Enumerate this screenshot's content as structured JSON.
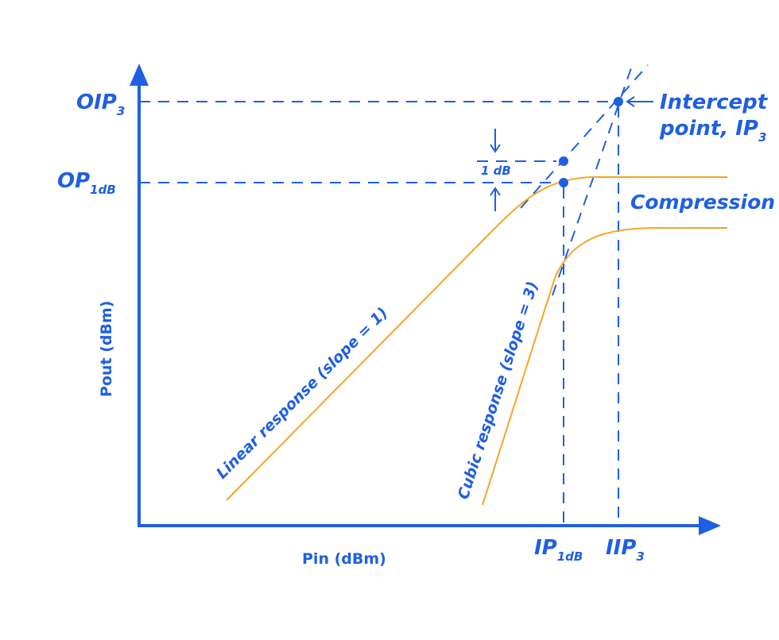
{
  "diagram": {
    "y_axis_label": "Pout (dBm)",
    "x_axis_label": "Pin (dBm)",
    "oip3_label": {
      "main": "OIP",
      "sub": "3"
    },
    "op1db_label": {
      "main": "OP",
      "sub": "1dB"
    },
    "ip1db_label": {
      "main": "IP",
      "sub": "1dB"
    },
    "iip3_label": {
      "main": "IIP",
      "sub": "3"
    },
    "intercept_label": {
      "line1": "Intercept",
      "line2": "point, IP",
      "sub": "3"
    },
    "compression_label": "Compression",
    "one_db_label": "1 dB",
    "linear_label": "Linear response (slope = 1)",
    "cubic_label": "Cubic response (slope = 3)",
    "colors": {
      "axis": "#1f5fe3",
      "curve": "#f5a623"
    }
  }
}
